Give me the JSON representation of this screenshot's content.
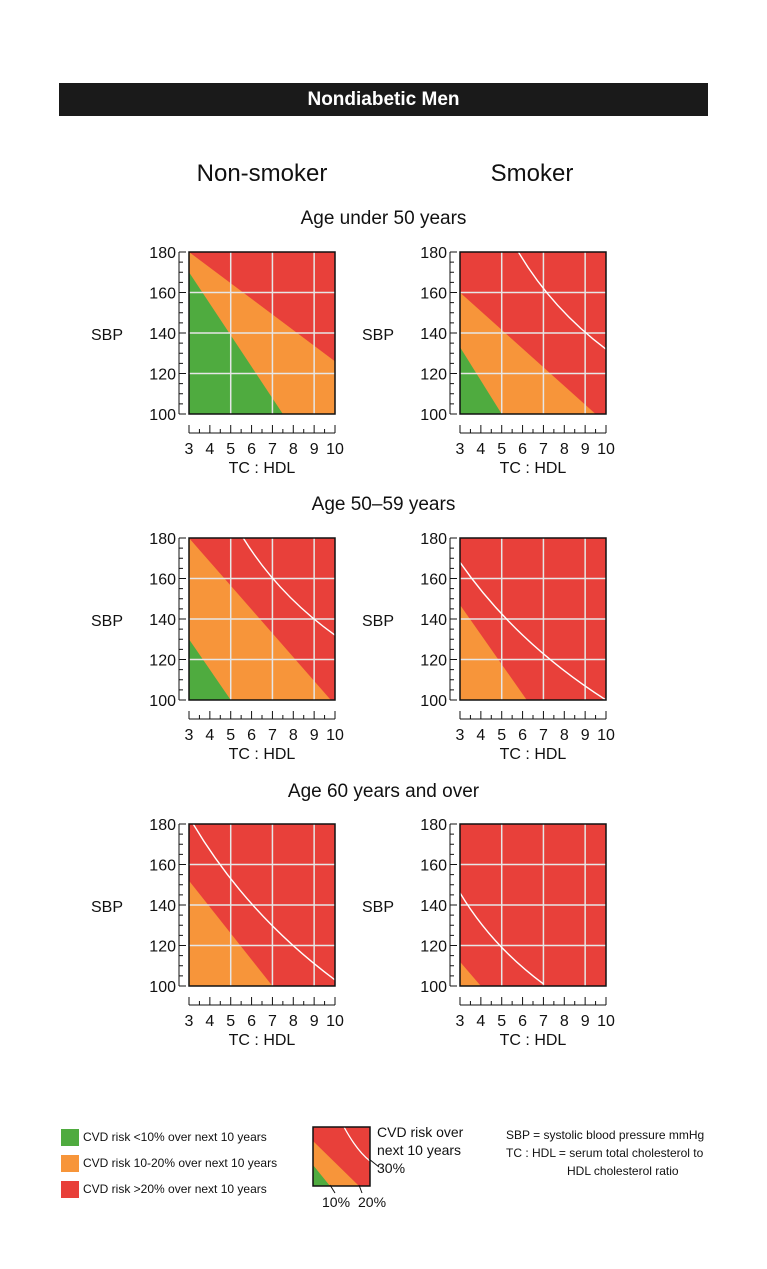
{
  "banner": "Nondiabetic Men",
  "columns": {
    "nonsmoker": "Non-smoker",
    "smoker": "Smoker"
  },
  "age_groups": [
    "Age under 50 years",
    "Age 50–59 years",
    "Age 60 years and over"
  ],
  "colors": {
    "green": "#4fab3f",
    "orange": "#f7953a",
    "red": "#e8403a"
  },
  "legend": {
    "green": "CVD risk <10% over next 10 years",
    "orange": "CVD risk 10-20% over next 10 years",
    "red": "CVD risk >20% over next 10 years"
  },
  "key": {
    "line1": "CVD risk over",
    "line2": "next 10 years",
    "label30": "30%",
    "label10": "10%",
    "label20": "20%"
  },
  "notes": {
    "sbp": "SBP = systolic blood pressure mmHg",
    "tc1": "TC : HDL = serum total cholesterol to",
    "tc2": "HDL cholesterol ratio"
  },
  "chart_data": [
    {
      "type": "area",
      "panel": "Non-smoker, age under 50 years",
      "xlabel": "TC : HDL",
      "ylabel": "SBP",
      "xlim": [
        3,
        10
      ],
      "ylim": [
        100,
        180
      ],
      "x_ticks": [
        3,
        4,
        5,
        6,
        7,
        8,
        9,
        10
      ],
      "y_ticks": [
        100,
        120,
        140,
        160,
        180
      ],
      "boundary_10": [
        [
          3,
          170
        ],
        [
          7.5,
          100
        ]
      ],
      "boundary_20": [
        [
          3,
          180
        ],
        [
          10,
          126
        ]
      ],
      "boundary_30": null
    },
    {
      "type": "area",
      "panel": "Smoker, age under 50 years",
      "xlabel": "TC : HDL",
      "ylabel": "SBP",
      "xlim": [
        3,
        10
      ],
      "ylim": [
        100,
        180
      ],
      "x_ticks": [
        3,
        4,
        5,
        6,
        7,
        8,
        9,
        10
      ],
      "y_ticks": [
        100,
        120,
        140,
        160,
        180
      ],
      "boundary_10": [
        [
          3,
          133
        ],
        [
          5,
          100
        ]
      ],
      "boundary_20": [
        [
          3,
          160
        ],
        [
          9.5,
          100
        ]
      ],
      "boundary_30": [
        [
          5.8,
          180
        ],
        [
          10,
          132
        ]
      ]
    },
    {
      "type": "area",
      "panel": "Non-smoker, age 50–59 years",
      "xlabel": "TC : HDL",
      "ylabel": "SBP",
      "xlim": [
        3,
        10
      ],
      "ylim": [
        100,
        180
      ],
      "x_ticks": [
        3,
        4,
        5,
        6,
        7,
        8,
        9,
        10
      ],
      "y_ticks": [
        100,
        120,
        140,
        160,
        180
      ],
      "boundary_10": [
        [
          3,
          130
        ],
        [
          5,
          100
        ]
      ],
      "boundary_20": [
        [
          3,
          180
        ],
        [
          9.8,
          100
        ]
      ],
      "boundary_30": [
        [
          5.6,
          180
        ],
        [
          10,
          132
        ]
      ]
    },
    {
      "type": "area",
      "panel": "Smoker, age 50–59 years",
      "xlabel": "TC : HDL",
      "ylabel": "SBP",
      "xlim": [
        3,
        10
      ],
      "ylim": [
        100,
        180
      ],
      "x_ticks": [
        3,
        4,
        5,
        6,
        7,
        8,
        9,
        10
      ],
      "y_ticks": [
        100,
        120,
        140,
        160,
        180
      ],
      "boundary_10": null,
      "boundary_20": [
        [
          3,
          147
        ],
        [
          6.2,
          100
        ]
      ],
      "boundary_30": [
        [
          3,
          168
        ],
        [
          10,
          100
        ]
      ]
    },
    {
      "type": "area",
      "panel": "Non-smoker, age 60 years and over",
      "xlabel": "TC : HDL",
      "ylabel": "SBP",
      "xlim": [
        3,
        10
      ],
      "ylim": [
        100,
        180
      ],
      "x_ticks": [
        3,
        4,
        5,
        6,
        7,
        8,
        9,
        10
      ],
      "y_ticks": [
        100,
        120,
        140,
        160,
        180
      ],
      "boundary_10": null,
      "boundary_20": [
        [
          3,
          152
        ],
        [
          7,
          100
        ]
      ],
      "boundary_30": [
        [
          3.2,
          180
        ],
        [
          10,
          103
        ]
      ]
    },
    {
      "type": "area",
      "panel": "Smoker, age 60 years and over",
      "xlabel": "TC : HDL",
      "ylabel": "SBP",
      "xlim": [
        3,
        10
      ],
      "ylim": [
        100,
        180
      ],
      "x_ticks": [
        3,
        4,
        5,
        6,
        7,
        8,
        9,
        10
      ],
      "y_ticks": [
        100,
        120,
        140,
        160,
        180
      ],
      "boundary_10": null,
      "boundary_20": [
        [
          3,
          112
        ],
        [
          4,
          100
        ]
      ],
      "boundary_30": [
        [
          3,
          146
        ],
        [
          7,
          101
        ]
      ]
    }
  ]
}
